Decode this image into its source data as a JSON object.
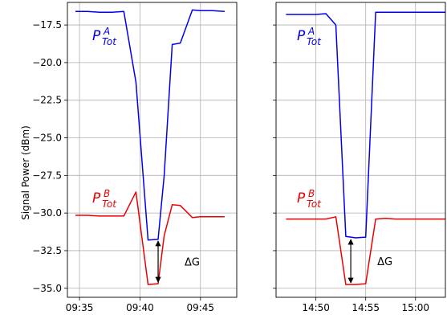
{
  "chart_data": [
    {
      "type": "line",
      "ylabel": "Signal Power (dBm)",
      "xlabel": "",
      "xlim": [
        "09:34",
        "09:48"
      ],
      "ylim": [
        -35.6,
        -16.0
      ],
      "xticks": [
        "09:35",
        "09:40",
        "09:45"
      ],
      "yticks": [
        "−17.5",
        "−20.0",
        "−22.5",
        "−25.0",
        "−27.5",
        "−30.0",
        "−32.5",
        "−35.0"
      ],
      "ytick_values": [
        -17.5,
        -20.0,
        -22.5,
        -25.0,
        -27.5,
        -30.0,
        -32.5,
        -35.0
      ],
      "grid": true,
      "series": [
        {
          "name": "P_Tot^A",
          "color": "#0000ee",
          "label_text": "P",
          "label_sub": "Tot",
          "label_sup": "A",
          "x": [
            "09:34:40",
            "09:35:40",
            "09:36:40",
            "09:37:40",
            "09:38:40",
            "09:39:40",
            "09:40:40",
            "09:41:30",
            "09:42:00",
            "09:42:40",
            "09:43:20",
            "09:44:20",
            "09:45:00",
            "09:46:00",
            "09:47:00"
          ],
          "y": [
            -16.6,
            -16.6,
            -16.65,
            -16.65,
            -16.6,
            -21.3,
            -31.8,
            -31.75,
            -27.5,
            -18.8,
            -18.7,
            -16.5,
            -16.55,
            -16.55,
            -16.6
          ]
        },
        {
          "name": "P_Tot^B",
          "color": "#ee0000",
          "label_text": "P",
          "label_sub": "Tot",
          "label_sup": "B",
          "x": [
            "09:34:40",
            "09:35:40",
            "09:36:40",
            "09:37:40",
            "09:38:40",
            "09:39:40",
            "09:40:40",
            "09:41:30",
            "09:42:00",
            "09:42:40",
            "09:43:20",
            "09:44:20",
            "09:45:00",
            "09:46:00",
            "09:47:00"
          ],
          "y": [
            -30.15,
            -30.15,
            -30.2,
            -30.2,
            -30.2,
            -28.6,
            -34.75,
            -34.7,
            -31.5,
            -29.45,
            -29.5,
            -30.3,
            -30.25,
            -30.25,
            -30.25
          ]
        }
      ],
      "annotations": [
        {
          "text": "ΔG",
          "kind": "double-arrow",
          "x": "09:41:30",
          "y1": -31.75,
          "y2": -34.7
        }
      ]
    },
    {
      "type": "line",
      "xlabel": "",
      "ylabel": "",
      "xlim": [
        "14:46",
        "15:03"
      ],
      "ylim": [
        -35.6,
        -16.0
      ],
      "xticks": [
        "14:50",
        "14:55",
        "15:00"
      ],
      "yticks": [],
      "ytick_values": [
        -17.5,
        -20.0,
        -22.5,
        -25.0,
        -27.5,
        -30.0,
        -32.5,
        -35.0
      ],
      "grid": true,
      "series": [
        {
          "name": "P_Tot^A",
          "color": "#0000ee",
          "label_text": "P",
          "label_sub": "Tot",
          "label_sup": "A",
          "x": [
            "14:47:00",
            "14:48:00",
            "14:49:00",
            "14:50:00",
            "14:51:00",
            "14:52:00",
            "14:53:00",
            "14:54:00",
            "14:55:00",
            "14:56:00",
            "14:57:00",
            "14:58:00",
            "14:59:00",
            "15:00:00",
            "15:01:00",
            "15:02:00",
            "15:03:00"
          ],
          "y": [
            -16.8,
            -16.8,
            -16.8,
            -16.8,
            -16.75,
            -17.5,
            -31.55,
            -31.65,
            -31.6,
            -16.65,
            -16.65,
            -16.65,
            -16.65,
            -16.65,
            -16.65,
            -16.65,
            -16.65
          ]
        },
        {
          "name": "P_Tot^B",
          "color": "#ee0000",
          "label_text": "P",
          "label_sub": "Tot",
          "label_sup": "B",
          "x": [
            "14:47:00",
            "14:48:00",
            "14:49:00",
            "14:50:00",
            "14:51:00",
            "14:52:00",
            "14:53:00",
            "14:54:00",
            "14:55:00",
            "14:56:00",
            "14:57:00",
            "14:58:00",
            "14:59:00",
            "15:00:00",
            "15:01:00",
            "15:02:00",
            "15:03:00"
          ],
          "y": [
            -30.4,
            -30.4,
            -30.4,
            -30.4,
            -30.4,
            -30.25,
            -34.75,
            -34.75,
            -34.7,
            -30.4,
            -30.35,
            -30.4,
            -30.4,
            -30.4,
            -30.4,
            -30.4,
            -30.4
          ]
        }
      ],
      "annotations": [
        {
          "text": "ΔG",
          "kind": "double-arrow",
          "x": "14:53:30",
          "y1": -31.65,
          "y2": -34.75
        }
      ]
    }
  ]
}
